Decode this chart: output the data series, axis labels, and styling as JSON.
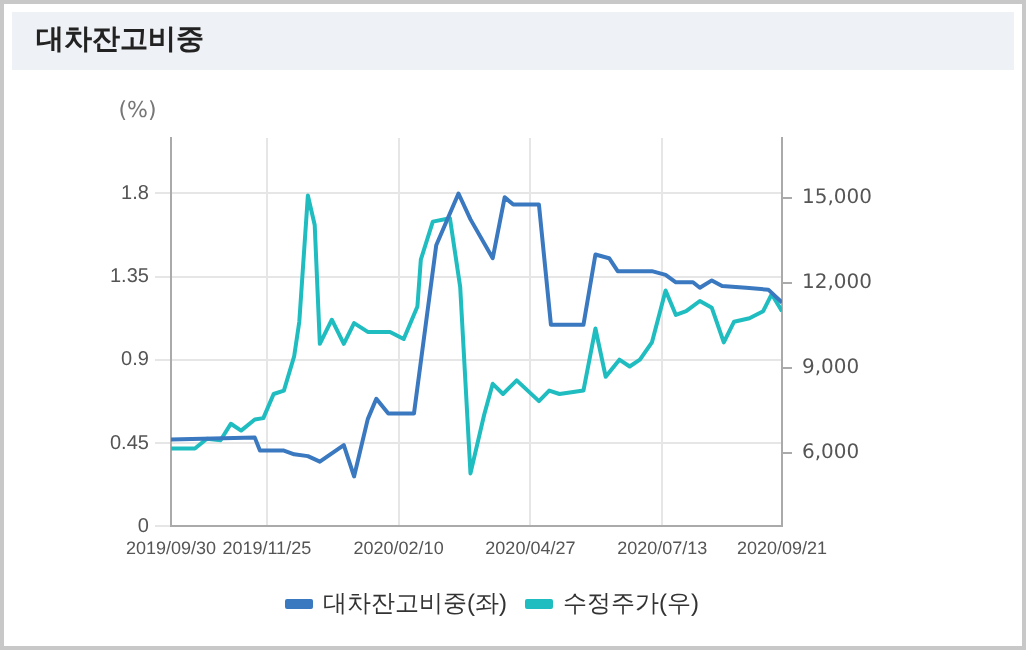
{
  "chart_data": {
    "type": "line",
    "title": "대차잔고비중",
    "ylabel": "(%)",
    "xlim": [
      "2019-09-30",
      "2020-09-21"
    ],
    "xticks": [
      {
        "value": "2019-09-30",
        "label": "2019/09/30"
      },
      {
        "value": "2019-11-25",
        "label": "2019/11/25"
      },
      {
        "value": "2020-02-10",
        "label": "2020/02/10"
      },
      {
        "value": "2020-04-27",
        "label": "2020/04/27"
      },
      {
        "value": "2020-07-13",
        "label": "2020/07/13"
      },
      {
        "value": "2020-09-21",
        "label": "2020/09/21"
      }
    ],
    "ylim": [
      0,
      2.1
    ],
    "yticks": [
      0,
      0.45,
      0.9,
      1.35,
      1.8
    ],
    "y2lim": [
      3400,
      17100
    ],
    "y2ticks": [
      {
        "value": 6000,
        "label": "6,000"
      },
      {
        "value": 9000,
        "label": "9,000"
      },
      {
        "value": 12000,
        "label": "12,000"
      },
      {
        "value": 15000,
        "label": "15,000"
      }
    ],
    "grid": true,
    "legend": "bottom",
    "marker": "none",
    "line_style": "solid",
    "series": [
      {
        "name": "대차잔고비중(좌)",
        "color": "#3a78c0",
        "x": [
          "2019-09-30",
          "2019-11-18",
          "2019-11-21",
          "2019-12-05",
          "2019-12-11",
          "2019-12-19",
          "2019-12-26",
          "2020-01-09",
          "2020-01-15",
          "2020-01-23",
          "2020-01-28",
          "2020-02-04",
          "2020-02-19",
          "2020-03-03",
          "2020-03-16",
          "2020-03-23",
          "2020-04-05",
          "2020-04-12",
          "2020-04-17",
          "2020-05-02",
          "2020-05-09",
          "2020-05-28",
          "2020-06-04",
          "2020-06-12",
          "2020-06-17",
          "2020-07-07",
          "2020-07-15",
          "2020-07-21",
          "2020-07-31",
          "2020-08-04",
          "2020-08-11",
          "2020-08-17",
          "2020-08-31",
          "2020-09-13",
          "2020-09-21"
        ],
        "values": [
          0.47,
          0.48,
          0.41,
          0.41,
          0.39,
          0.38,
          0.35,
          0.44,
          0.27,
          0.58,
          0.69,
          0.61,
          0.61,
          1.52,
          1.8,
          1.66,
          1.45,
          1.78,
          1.74,
          1.74,
          1.09,
          1.09,
          1.47,
          1.45,
          1.38,
          1.38,
          1.36,
          1.32,
          1.32,
          1.29,
          1.33,
          1.3,
          1.29,
          1.28,
          1.21
        ]
      },
      {
        "name": "수정주가(우)",
        "color": "#1fbcc0",
        "axis": "y2",
        "x": [
          "2019-09-30",
          "2019-10-14",
          "2019-10-21",
          "2019-10-29",
          "2019-11-04",
          "2019-11-10",
          "2019-11-18",
          "2019-11-23",
          "2019-11-29",
          "2019-12-05",
          "2019-12-11",
          "2019-12-14",
          "2019-12-19",
          "2019-12-23",
          "2019-12-26",
          "2020-01-02",
          "2020-01-09",
          "2020-01-15",
          "2020-01-23",
          "2020-02-05",
          "2020-02-13",
          "2020-02-21",
          "2020-02-23",
          "2020-03-01",
          "2020-03-11",
          "2020-03-17",
          "2020-03-23",
          "2020-03-31",
          "2020-04-05",
          "2020-04-11",
          "2020-04-19",
          "2020-05-02",
          "2020-05-08",
          "2020-05-14",
          "2020-05-28",
          "2020-06-04",
          "2020-06-10",
          "2020-06-18",
          "2020-06-24",
          "2020-06-30",
          "2020-07-07",
          "2020-07-15",
          "2020-07-21",
          "2020-07-27",
          "2020-08-04",
          "2020-08-11",
          "2020-08-18",
          "2020-08-24",
          "2020-09-02",
          "2020-09-10",
          "2020-09-15",
          "2020-09-21"
        ],
        "values": [
          6150,
          6150,
          6490,
          6440,
          7020,
          6780,
          7170,
          7220,
          8070,
          8190,
          9400,
          10620,
          15070,
          14030,
          9840,
          10690,
          9840,
          10570,
          10260,
          10260,
          10010,
          11160,
          12810,
          14150,
          14270,
          11840,
          5270,
          7340,
          8430,
          8070,
          8550,
          7820,
          8190,
          8070,
          8190,
          10380,
          8680,
          9280,
          9040,
          9280,
          9890,
          11720,
          10860,
          10990,
          11350,
          11110,
          9890,
          10620,
          10740,
          10990,
          11590,
          10990
        ]
      }
    ]
  }
}
